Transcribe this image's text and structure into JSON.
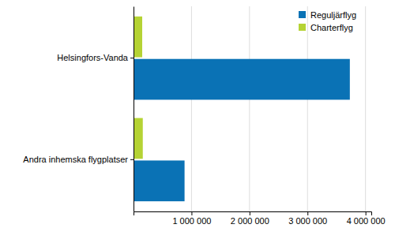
{
  "chart_data": {
    "type": "bar",
    "orientation": "horizontal",
    "categories": [
      "Helsingfors-Vanda",
      "Andra inhemska flygplatser"
    ],
    "series": [
      {
        "name": "Charterflyg",
        "color": "#b5d334",
        "values": [
          150000,
          160000
        ]
      },
      {
        "name": "Reguljärflyg",
        "color": "#0a72b5",
        "values": [
          3730000,
          880000
        ]
      }
    ],
    "xlim": [
      0,
      4100000
    ],
    "xticks": [
      {
        "value": 1000000,
        "label": "1 000 000"
      },
      {
        "value": 2000000,
        "label": "2 000 000"
      },
      {
        "value": 3000000,
        "label": "3 000 000"
      },
      {
        "value": 4000000,
        "label": "4 000 000"
      }
    ],
    "grid": true,
    "legend": "top-right"
  }
}
